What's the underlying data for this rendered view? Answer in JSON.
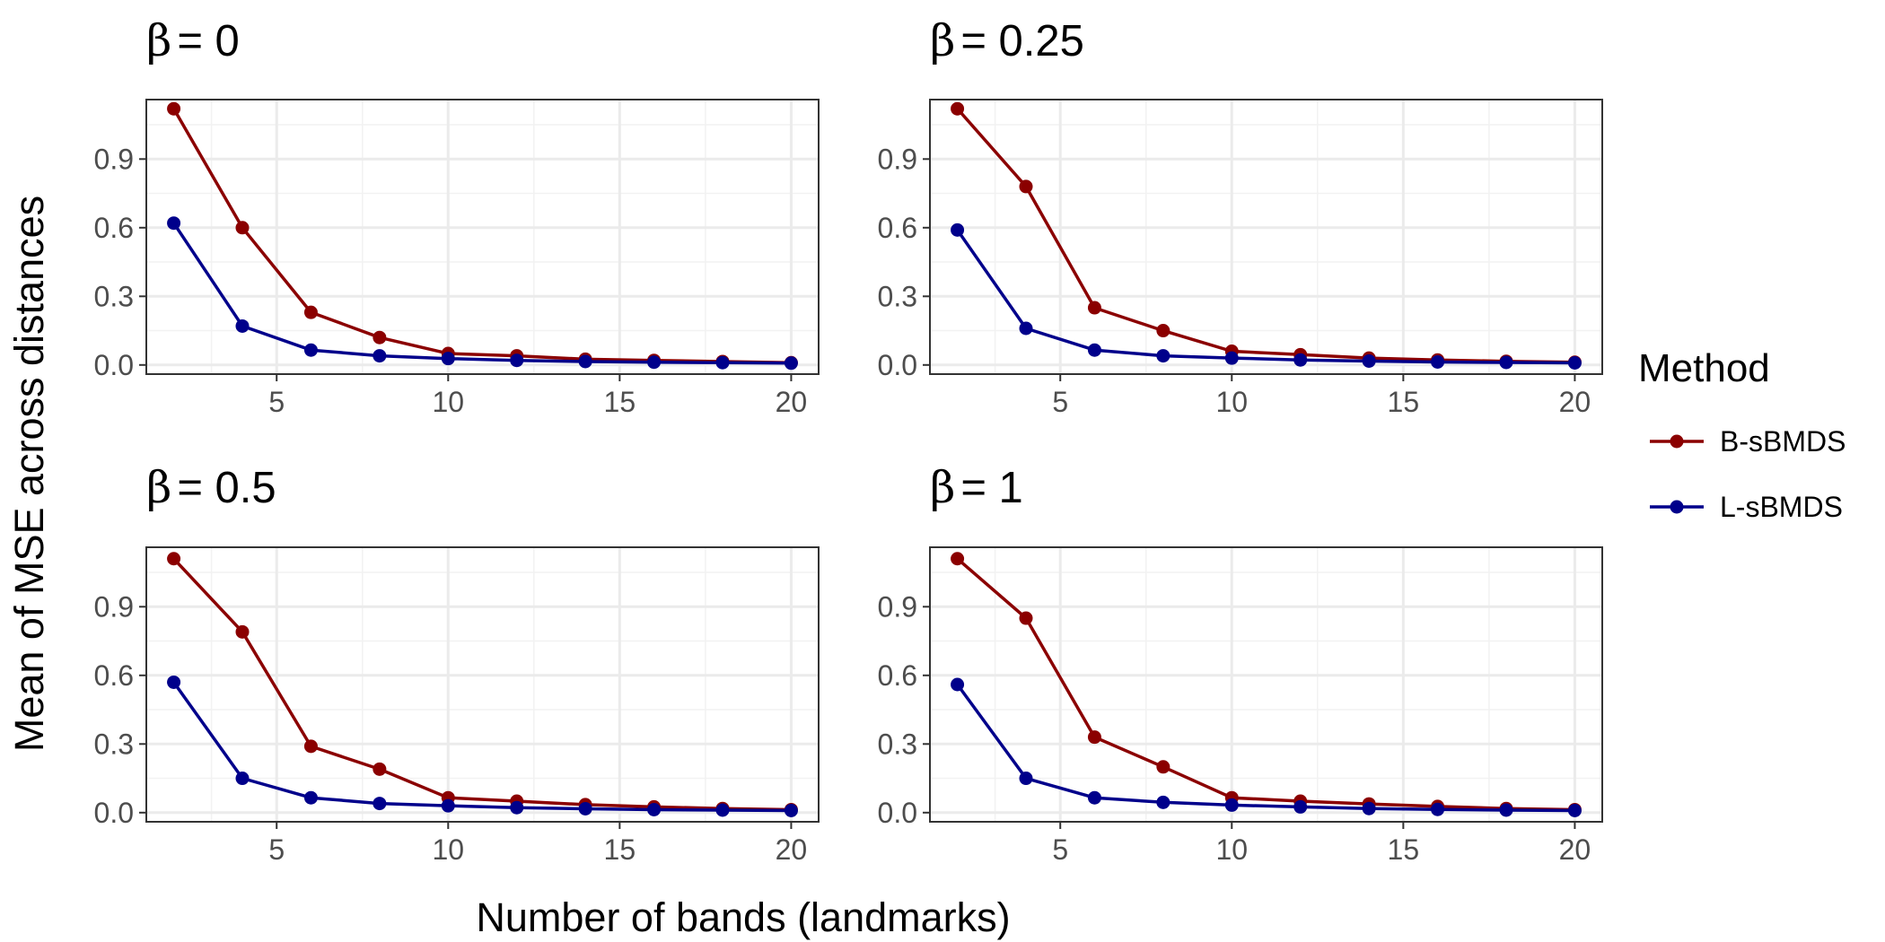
{
  "chart_data": {
    "type": "line",
    "xlabel": "Number of bands (landmarks)",
    "ylabel": "Mean of MSE across distances",
    "xlim": [
      1.2,
      20.8
    ],
    "ylim": [
      -0.04,
      1.16
    ],
    "x_ticks": [
      5,
      10,
      15,
      20
    ],
    "x_tick_labels": [
      "5",
      "10",
      "15",
      "20"
    ],
    "y_ticks": [
      0.0,
      0.3,
      0.6,
      0.9
    ],
    "y_tick_labels": [
      "0.0",
      "0.3",
      "0.6",
      "0.9"
    ],
    "grid": true,
    "legend": {
      "title": "Method",
      "position": "right",
      "entries": [
        {
          "label": "B-sBMDS",
          "color": "#8b0000"
        },
        {
          "label": "L-sBMDS",
          "color": "#00008b"
        }
      ]
    },
    "x": [
      2,
      4,
      6,
      8,
      10,
      12,
      14,
      16,
      18,
      20
    ],
    "panels": [
      {
        "beta_symbol": "β",
        "title": "= 0",
        "series": [
          {
            "name": "B-sBMDS",
            "color": "#8b0000",
            "values": [
              1.12,
              0.6,
              0.23,
              0.12,
              0.05,
              0.04,
              0.025,
              0.02,
              0.015,
              0.01
            ]
          },
          {
            "name": "L-sBMDS",
            "color": "#00008b",
            "values": [
              0.62,
              0.17,
              0.065,
              0.04,
              0.028,
              0.02,
              0.015,
              0.012,
              0.01,
              0.008
            ]
          }
        ]
      },
      {
        "beta_symbol": "β",
        "title": "= 0.25",
        "series": [
          {
            "name": "B-sBMDS",
            "color": "#8b0000",
            "values": [
              1.12,
              0.78,
              0.25,
              0.15,
              0.06,
              0.045,
              0.03,
              0.022,
              0.016,
              0.012
            ]
          },
          {
            "name": "L-sBMDS",
            "color": "#00008b",
            "values": [
              0.59,
              0.16,
              0.065,
              0.04,
              0.03,
              0.022,
              0.017,
              0.013,
              0.011,
              0.009
            ]
          }
        ]
      },
      {
        "beta_symbol": "β",
        "title": "= 0.5",
        "series": [
          {
            "name": "B-sBMDS",
            "color": "#8b0000",
            "values": [
              1.11,
              0.79,
              0.29,
              0.19,
              0.065,
              0.05,
              0.035,
              0.025,
              0.018,
              0.013
            ]
          },
          {
            "name": "L-sBMDS",
            "color": "#00008b",
            "values": [
              0.57,
              0.15,
              0.065,
              0.04,
              0.03,
              0.022,
              0.017,
              0.013,
              0.011,
              0.009
            ]
          }
        ]
      },
      {
        "beta_symbol": "β",
        "title": "= 1",
        "series": [
          {
            "name": "B-sBMDS",
            "color": "#8b0000",
            "values": [
              1.11,
              0.85,
              0.33,
              0.2,
              0.065,
              0.05,
              0.038,
              0.027,
              0.018,
              0.013
            ]
          },
          {
            "name": "L-sBMDS",
            "color": "#00008b",
            "values": [
              0.56,
              0.15,
              0.065,
              0.045,
              0.033,
              0.025,
              0.018,
              0.014,
              0.011,
              0.009
            ]
          }
        ]
      }
    ]
  }
}
